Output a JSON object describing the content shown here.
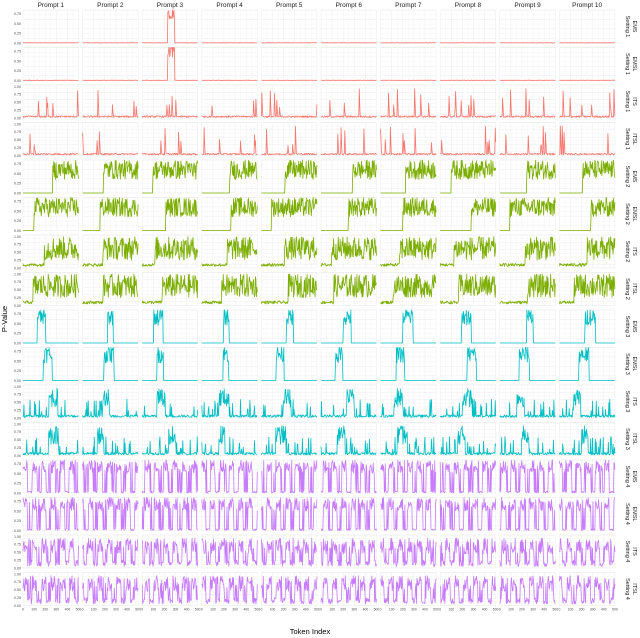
{
  "chart_data": {
    "type": "line",
    "title": "",
    "xlabel": "Token Index",
    "ylabel": "P-Value",
    "xlim": [
      0,
      500
    ],
    "x_ticks": [
      0,
      100,
      200,
      300,
      400,
      500
    ],
    "column_labels": [
      "Prompt 1",
      "Prompt 2",
      "Prompt 3",
      "Prompt 4",
      "Prompt 5",
      "Prompt 6",
      "Prompt 7",
      "Prompt 8",
      "Prompt 9",
      "Prompt 10"
    ],
    "row_labels": [
      {
        "setting": "Setting 1",
        "method": "EMS"
      },
      {
        "setting": "Setting 1",
        "method": "EMSL"
      },
      {
        "setting": "Setting 1",
        "method": "ITS"
      },
      {
        "setting": "Setting 1",
        "method": "ITSL"
      },
      {
        "setting": "Setting 2",
        "method": "EMS"
      },
      {
        "setting": "Setting 2",
        "method": "EMSL"
      },
      {
        "setting": "Setting 2",
        "method": "ITS"
      },
      {
        "setting": "Setting 2",
        "method": "ITSL"
      },
      {
        "setting": "Setting 3",
        "method": "EMS"
      },
      {
        "setting": "Setting 3",
        "method": "EMSL"
      },
      {
        "setting": "Setting 3",
        "method": "ITS"
      },
      {
        "setting": "Setting 3",
        "method": "ITSL"
      },
      {
        "setting": "Setting 4",
        "method": "EMS"
      },
      {
        "setting": "Setting 4",
        "method": "EMSL"
      },
      {
        "setting": "Setting 4",
        "method": "ITS"
      },
      {
        "setting": "Setting 4",
        "method": "ITSL"
      }
    ],
    "y_ticks_ems": [
      0.0,
      0.25,
      0.5,
      0.75
    ],
    "y_ticks_its": [
      0.0,
      0.25,
      0.5,
      0.75,
      1.0
    ],
    "setting_colors": {
      "Setting 1": "#f8766d",
      "Setting 2": "#7cae00",
      "Setting 3": "#00bfc4",
      "Setting 4": "#c77cff"
    },
    "grid": true,
    "legend": "none"
  }
}
